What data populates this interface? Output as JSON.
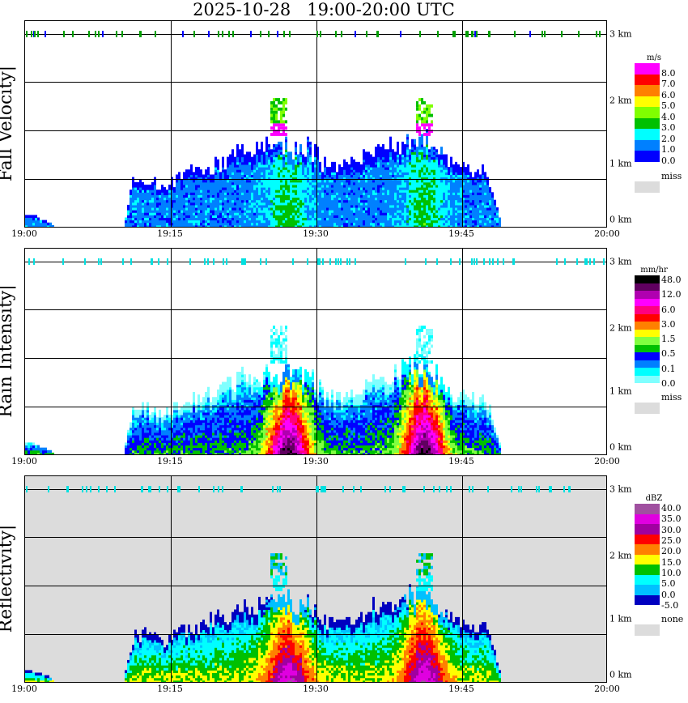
{
  "title": "2025-10-28   19:00-20:00 UTC",
  "x_ticks": [
    "19:00",
    "19:15",
    "19:30",
    "19:45",
    "20:00"
  ],
  "km_labels": [
    "3 km",
    "2 km",
    "1 km",
    "0 km"
  ],
  "chart_data": [
    {
      "type": "heatmap",
      "title": "Fall Velocity",
      "ylabel": "Fall Velocity|",
      "unit": "m/s",
      "colorbar_labels": [
        "8.0",
        "7.0",
        "6.0",
        "5.0",
        "4.0",
        "3.0",
        "2.0",
        "1.0",
        "0.0"
      ],
      "missing_label": "miss",
      "colors": [
        "#ff00ff",
        "#ff0000",
        "#ff8000",
        "#ffff00",
        "#80ff00",
        "#00c000",
        "#00ffff",
        "#0080ff",
        "#0000ff"
      ],
      "background": "#ffffff"
    },
    {
      "type": "heatmap",
      "title": "Rain Intensity",
      "ylabel": "Rain Intensity|",
      "unit": "mm/hr",
      "colorbar_labels": [
        "48.0",
        "12.0",
        "6.0",
        "3.0",
        "1.5",
        "0.5",
        "0.1",
        "0.0"
      ],
      "missing_label": "miss",
      "colors": [
        "#000000",
        "#600060",
        "#b000b0",
        "#ff00ff",
        "#ff0080",
        "#ff0000",
        "#ff8000",
        "#ffff00",
        "#80ff40",
        "#00c000",
        "#0000ff",
        "#0080ff",
        "#00ffff",
        "#80ffff"
      ],
      "background": "#ffffff"
    },
    {
      "type": "heatmap",
      "title": "Reflectivity",
      "ylabel": "Reflectivity|",
      "unit": "dBZ",
      "colorbar_labels": [
        "40.0",
        "35.0",
        "30.0",
        "25.0",
        "20.0",
        "15.0",
        "10.0",
        "5.0",
        "0.0",
        "-5.0"
      ],
      "missing_label": "none",
      "colors": [
        "#a050a0",
        "#e000e0",
        "#a000a0",
        "#ff0000",
        "#ff8000",
        "#ffff00",
        "#00c000",
        "#00ffff",
        "#00c0ff",
        "#0000c0"
      ],
      "background": "#dcdcdc"
    }
  ],
  "x_range_minutes": [
    0,
    60
  ],
  "y_range_km": [
    0,
    3.3
  ],
  "echo_top_km_per_minute": [
    0.2,
    0.15,
    0.1,
    0,
    0,
    0,
    0,
    0,
    0,
    0,
    0,
    0.7,
    0.75,
    0.7,
    0.6,
    0.7,
    0.8,
    0.85,
    0.9,
    0.95,
    1.0,
    1.1,
    1.2,
    1.15,
    1.2,
    1.3,
    1.25,
    1.3,
    1.2,
    1.25,
    1.1,
    0.9,
    0.9,
    0.95,
    1.0,
    1.1,
    1.2,
    1.25,
    1.3,
    1.35,
    1.4,
    1.45,
    1.3,
    1.1,
    0.95,
    0.9,
    0.85,
    0.9,
    0.6,
    0,
    0,
    0,
    0,
    0,
    0,
    0,
    0,
    0,
    0,
    0
  ],
  "core_minutes": [
    27,
    41
  ],
  "aloft_patches_minutes": [
    26,
    41
  ]
}
